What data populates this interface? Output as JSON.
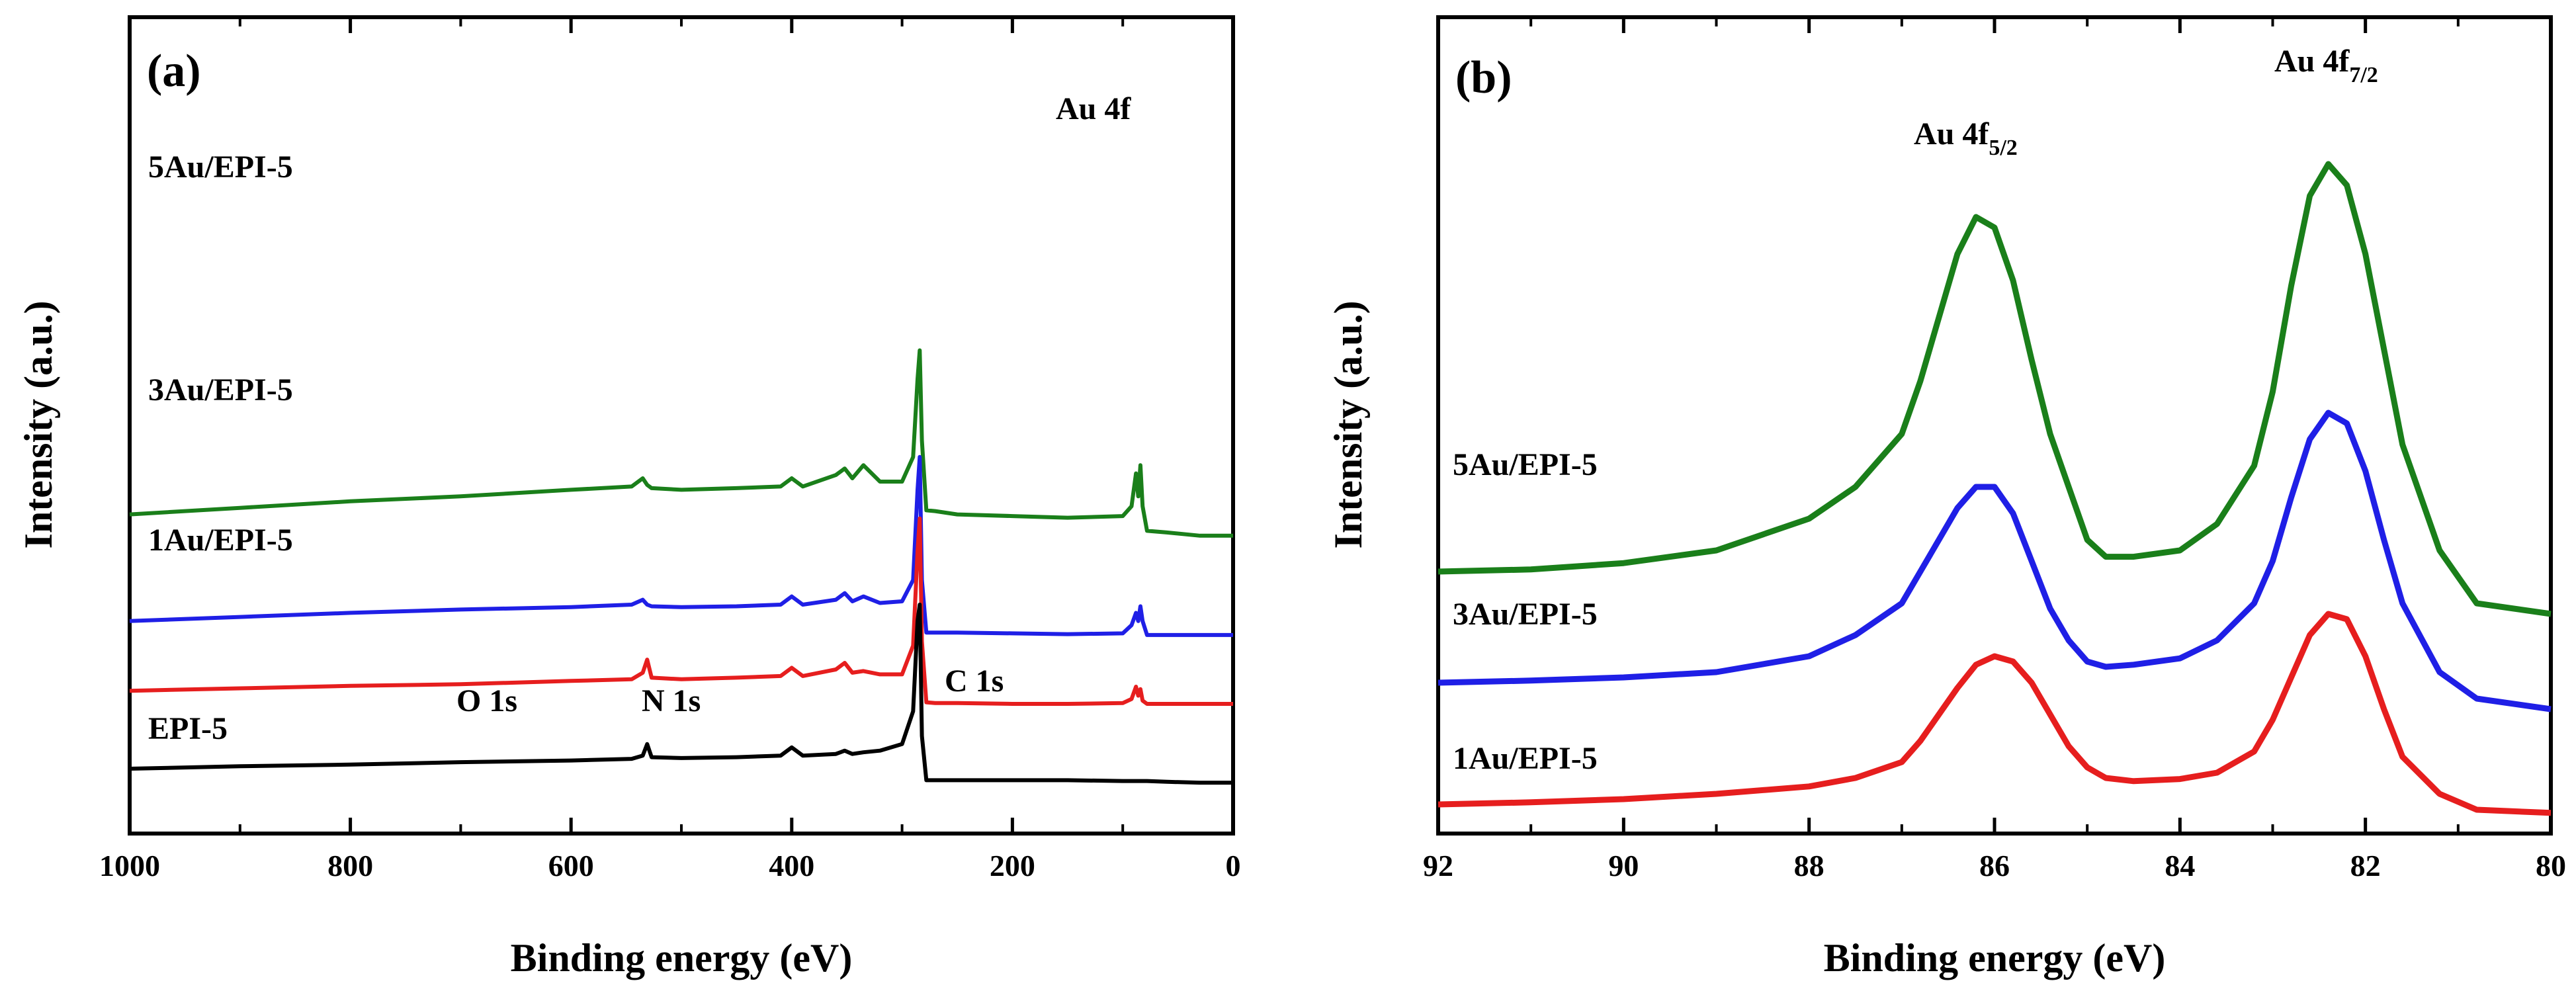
{
  "chart_data": [
    {
      "type": "line",
      "panel_label": "(a)",
      "xlabel": "Binding energy (eV)",
      "ylabel": "Intensity (a.u.)",
      "xlim": [
        1000,
        0
      ],
      "x_reversed": true,
      "xticks": [
        1000,
        800,
        600,
        400,
        200,
        0
      ],
      "xtick_labels": [
        "1000",
        "800",
        "600",
        "400",
        "200",
        "0"
      ],
      "y_ticks_shown": false,
      "annotations": [
        {
          "text": "O 1s",
          "x": 650
        },
        {
          "text": "N 1s",
          "x": 500
        },
        {
          "text": "C 1s",
          "x": 255
        },
        {
          "text": "Au 4f",
          "x": 125
        }
      ],
      "series": [
        {
          "name": "5Au/EPI-5",
          "color": "#1a7f1a",
          "offset": 3.1,
          "x": [
            1000,
            900,
            800,
            700,
            600,
            545,
            535,
            531,
            527,
            500,
            450,
            410,
            400,
            390,
            360,
            352,
            345,
            335,
            320,
            300,
            290,
            286,
            284,
            282,
            278,
            270,
            250,
            200,
            150,
            100,
            92,
            88,
            86,
            84,
            82,
            78,
            60,
            30,
            0
          ],
          "y": [
            0.0,
            0.08,
            0.16,
            0.22,
            0.3,
            0.34,
            0.44,
            0.36,
            0.32,
            0.3,
            0.32,
            0.34,
            0.44,
            0.34,
            0.48,
            0.56,
            0.44,
            0.6,
            0.4,
            0.4,
            0.7,
            1.65,
            2.0,
            0.9,
            0.05,
            0.04,
            0.0,
            -0.02,
            -0.04,
            -0.02,
            0.1,
            0.5,
            0.22,
            0.6,
            0.1,
            -0.2,
            -0.22,
            -0.26,
            -0.26
          ]
        },
        {
          "name": "3Au/EPI-5",
          "color": "#1f1fe6",
          "offset": 1.8,
          "x": [
            1000,
            900,
            800,
            700,
            600,
            545,
            535,
            531,
            527,
            500,
            450,
            410,
            400,
            390,
            360,
            352,
            345,
            335,
            320,
            300,
            290,
            286,
            284,
            282,
            278,
            270,
            250,
            200,
            150,
            100,
            92,
            88,
            86,
            84,
            82,
            78,
            60,
            30,
            0
          ],
          "y": [
            0.0,
            0.05,
            0.1,
            0.14,
            0.17,
            0.2,
            0.26,
            0.2,
            0.18,
            0.17,
            0.18,
            0.2,
            0.3,
            0.2,
            0.26,
            0.34,
            0.24,
            0.3,
            0.22,
            0.24,
            0.5,
            1.6,
            2.0,
            0.5,
            -0.14,
            -0.14,
            -0.14,
            -0.15,
            -0.16,
            -0.15,
            -0.05,
            0.1,
            0.0,
            0.18,
            0.0,
            -0.17,
            -0.17,
            -0.17,
            -0.17
          ]
        },
        {
          "name": "1Au/EPI-5",
          "color": "#e61e1e",
          "offset": 0.95,
          "x": [
            1000,
            900,
            800,
            700,
            600,
            545,
            535,
            531,
            527,
            500,
            450,
            410,
            400,
            390,
            360,
            352,
            345,
            335,
            320,
            300,
            290,
            286,
            284,
            282,
            278,
            270,
            250,
            200,
            150,
            100,
            92,
            88,
            86,
            84,
            82,
            78,
            60,
            30,
            0
          ],
          "y": [
            0.0,
            0.03,
            0.06,
            0.08,
            0.12,
            0.14,
            0.22,
            0.38,
            0.16,
            0.14,
            0.16,
            0.18,
            0.28,
            0.18,
            0.26,
            0.34,
            0.22,
            0.24,
            0.2,
            0.2,
            0.55,
            1.7,
            2.1,
            0.6,
            -0.14,
            -0.15,
            -0.15,
            -0.16,
            -0.16,
            -0.15,
            -0.1,
            0.05,
            -0.06,
            0.02,
            -0.12,
            -0.16,
            -0.16,
            -0.16,
            -0.16
          ]
        },
        {
          "name": "EPI-5",
          "color": "#000000",
          "offset": 0.0,
          "x": [
            1000,
            900,
            800,
            700,
            600,
            545,
            535,
            531,
            527,
            500,
            450,
            410,
            400,
            390,
            360,
            352,
            345,
            335,
            320,
            300,
            290,
            286,
            284,
            282,
            278,
            270,
            250,
            200,
            150,
            100,
            92,
            88,
            86,
            84,
            82,
            78,
            60,
            30,
            0
          ],
          "y": [
            0.0,
            0.03,
            0.05,
            0.08,
            0.1,
            0.12,
            0.16,
            0.3,
            0.14,
            0.13,
            0.14,
            0.16,
            0.26,
            0.16,
            0.18,
            0.22,
            0.18,
            0.2,
            0.22,
            0.3,
            0.7,
            1.8,
            2.0,
            0.4,
            -0.14,
            -0.14,
            -0.14,
            -0.14,
            -0.14,
            -0.15,
            -0.15,
            -0.15,
            -0.15,
            -0.15,
            -0.15,
            -0.15,
            -0.16,
            -0.17,
            -0.17
          ]
        }
      ]
    },
    {
      "type": "line",
      "panel_label": "(b)",
      "xlabel": "Binding energy (eV)",
      "ylabel": "Intensity (a.u.)",
      "xlim": [
        92,
        80
      ],
      "x_reversed": true,
      "xticks": [
        92,
        90,
        88,
        86,
        84,
        82,
        80
      ],
      "xtick_labels": [
        "92",
        "90",
        "88",
        "86",
        "84",
        "82",
        "80"
      ],
      "y_ticks_shown": false,
      "annotations": [
        {
          "text": "Au 4f",
          "sub": "5/2",
          "x": 86.2
        },
        {
          "text": "Au 4f",
          "sub": "7/2",
          "x": 82.5
        }
      ],
      "series": [
        {
          "name": "5Au/EPI-5",
          "color": "#1a7f1a",
          "x": [
            92,
            91,
            90,
            89,
            88,
            87.5,
            87,
            86.8,
            86.6,
            86.4,
            86.2,
            86.0,
            85.8,
            85.6,
            85.4,
            85.2,
            85.0,
            84.8,
            84.5,
            84.0,
            83.6,
            83.2,
            83.0,
            82.8,
            82.6,
            82.4,
            82.2,
            82.0,
            81.8,
            81.6,
            81.2,
            80.8,
            80
          ],
          "y": [
            2.3,
            2.32,
            2.38,
            2.5,
            2.8,
            3.1,
            3.6,
            4.1,
            4.7,
            5.3,
            5.65,
            5.55,
            5.05,
            4.3,
            3.6,
            3.1,
            2.6,
            2.44,
            2.44,
            2.5,
            2.75,
            3.3,
            4.0,
            5.0,
            5.85,
            6.15,
            5.95,
            5.3,
            4.4,
            3.5,
            2.5,
            2.0,
            1.9
          ]
        },
        {
          "name": "3Au/EPI-5",
          "color": "#1f1fe6",
          "x": [
            92,
            91,
            90,
            89,
            88,
            87.5,
            87,
            86.8,
            86.6,
            86.4,
            86.2,
            86.0,
            85.8,
            85.6,
            85.4,
            85.2,
            85.0,
            84.8,
            84.5,
            84.0,
            83.6,
            83.2,
            83.0,
            82.8,
            82.6,
            82.4,
            82.2,
            82.0,
            81.8,
            81.6,
            81.2,
            80.8,
            80
          ],
          "y": [
            1.25,
            1.27,
            1.3,
            1.35,
            1.5,
            1.7,
            2.0,
            2.3,
            2.6,
            2.9,
            3.1,
            3.1,
            2.85,
            2.4,
            1.95,
            1.65,
            1.45,
            1.4,
            1.42,
            1.48,
            1.65,
            2.0,
            2.4,
            3.0,
            3.55,
            3.8,
            3.7,
            3.25,
            2.6,
            2.0,
            1.35,
            1.1,
            1.0
          ]
        },
        {
          "name": "1Au/EPI-5",
          "color": "#e61e1e",
          "x": [
            92,
            91,
            90,
            89,
            88,
            87.5,
            87,
            86.8,
            86.6,
            86.4,
            86.2,
            86.0,
            85.8,
            85.6,
            85.4,
            85.2,
            85.0,
            84.8,
            84.5,
            84.0,
            83.6,
            83.2,
            83.0,
            82.8,
            82.6,
            82.4,
            82.2,
            82.0,
            81.8,
            81.6,
            81.2,
            80.8,
            80
          ],
          "y": [
            0.1,
            0.12,
            0.15,
            0.2,
            0.27,
            0.35,
            0.5,
            0.7,
            0.95,
            1.2,
            1.42,
            1.5,
            1.45,
            1.25,
            0.95,
            0.65,
            0.45,
            0.35,
            0.32,
            0.34,
            0.4,
            0.6,
            0.9,
            1.3,
            1.7,
            1.9,
            1.85,
            1.5,
            1.0,
            0.55,
            0.2,
            0.05,
            0.02
          ]
        }
      ]
    }
  ]
}
